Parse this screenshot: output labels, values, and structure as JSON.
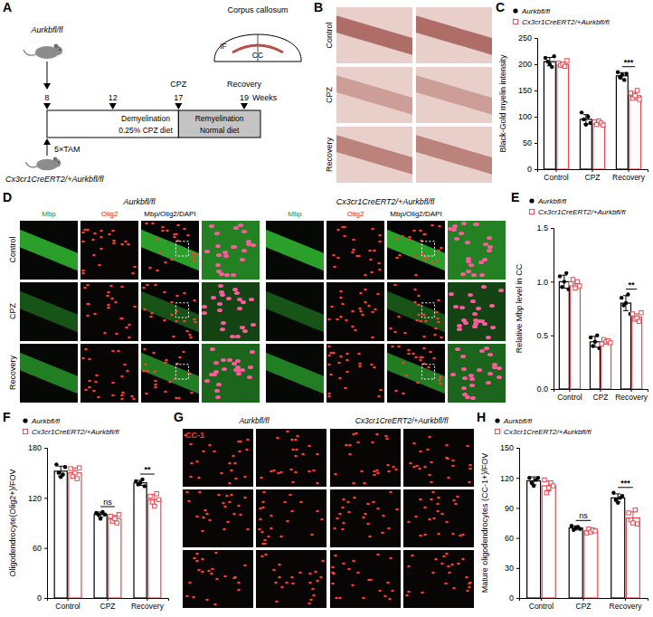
{
  "panel_labels": [
    "A",
    "B",
    "C",
    "D",
    "E",
    "F",
    "G",
    "H"
  ],
  "schematic": {
    "control_mouse": "Aurkbfl/fl",
    "cko_mouse": "Cx3cr1CreERT2/+Aurkbfl/fl",
    "tam": "5×TAM",
    "weeks": [
      8,
      12,
      17,
      19
    ],
    "weeks_label": "Weeks",
    "stage_labels": [
      "CPZ",
      "Recovery"
    ],
    "demyelination": "Demyelination",
    "cpz_diet": "0.25% CPZ diet",
    "remyelination": "Remyelination",
    "normal_diet": "Normal diet",
    "region": "Corpus callosum",
    "method": "IF",
    "region_abbrev": "CC"
  },
  "panel_b": {
    "rows": [
      "Control",
      "CPZ",
      "Recovery"
    ]
  },
  "panel_d": {
    "groups": [
      "Aurkbfl/fl",
      "Cx3cr1CreERT2/+Aurkbfl/fl"
    ],
    "channels": [
      "Mbp",
      "Olig2",
      "Mbp/Olig2/DAPI"
    ],
    "rows": [
      "Control",
      "CPZ",
      "Recovery"
    ]
  },
  "panel_g": {
    "groups": [
      "Aurkbfl/fl",
      "Cx3cr1CreERT2/+Aurkbfl/fl"
    ],
    "stain": "CC-1"
  },
  "chart_data": [
    {
      "type": "bar",
      "ylabel": "Black-Gold myelin intensity",
      "categories": [
        "Control",
        "CPZ",
        "Recovery"
      ],
      "legend": "top",
      "ylim": [
        0,
        250
      ],
      "yticks": [
        0,
        50,
        100,
        150,
        200,
        250
      ],
      "series": [
        {
          "name": "Aurkbfl/fl",
          "color": "#000000",
          "marker": "circle",
          "values": [
            205,
            95,
            178
          ],
          "errors": [
            8,
            9,
            6
          ],
          "points": [
            [
              212,
              205,
              200,
              195,
              215
            ],
            [
              108,
              95,
              85,
              100,
              88
            ],
            [
              185,
              175,
              180,
              170,
              182
            ]
          ]
        },
        {
          "name": "Cx3cr1CreERT2/+Aurkbfl/fl",
          "color": "#e8474f",
          "marker": "open-square",
          "values": [
            200,
            88,
            140
          ],
          "errors": [
            4,
            3,
            7
          ],
          "points": [
            [
              202,
              198,
              200,
              196,
              207
            ],
            [
              90,
              85,
              92,
              88,
              84
            ],
            [
              145,
              135,
              140,
              150,
              133
            ]
          ]
        }
      ],
      "annotations": [
        {
          "category": "Recovery",
          "label": "***"
        }
      ]
    },
    {
      "type": "bar",
      "ylabel": "Relative Mbp level in CC",
      "categories": [
        "Control",
        "CPZ",
        "Recovery"
      ],
      "legend": "top",
      "ylim": [
        0,
        1.5
      ],
      "yticks": [
        {
          "value": 0,
          "label": "0.0"
        },
        {
          "value": 0.5,
          "label": "0.5"
        },
        {
          "value": 1,
          "label": "1.0"
        },
        {
          "value": 1.5,
          "label": "1.5"
        }
      ],
      "series": [
        {
          "name": "Aurkbfl/fl",
          "color": "#000000",
          "marker": "circle",
          "values": [
            1.0,
            0.44,
            0.8
          ],
          "errors": [
            0.06,
            0.05,
            0.07
          ],
          "points": [
            [
              1.05,
              0.95,
              1.0,
              1.08,
              0.93
            ],
            [
              0.48,
              0.4,
              0.44,
              0.5,
              0.38
            ],
            [
              0.85,
              0.78,
              0.8,
              0.88,
              0.7
            ]
          ]
        },
        {
          "name": "Cx3cr1CreERT2/+Aurkbfl/fl",
          "color": "#e8474f",
          "marker": "open-square",
          "values": [
            0.98,
            0.44,
            0.67
          ],
          "errors": [
            0.03,
            0.02,
            0.03
          ],
          "points": [
            [
              0.98,
              1.02,
              0.94,
              1.0,
              0.96
            ],
            [
              0.42,
              0.46,
              0.44,
              0.45,
              0.43
            ],
            [
              0.7,
              0.65,
              0.66,
              0.63,
              0.71
            ]
          ]
        }
      ],
      "annotations": [
        {
          "category": "Recovery",
          "label": "**"
        }
      ]
    },
    {
      "type": "bar",
      "ylabel": "Oligodendrocyte(Olig2+)/FOV",
      "categories": [
        "Control",
        "CPZ",
        "Recovery"
      ],
      "legend": "top",
      "ylim": [
        0,
        180
      ],
      "yticks": [
        0,
        60,
        120,
        180
      ],
      "series": [
        {
          "name": "Aurkbfl/fl",
          "color": "#000000",
          "marker": "circle",
          "values": [
            152,
            100,
            138
          ],
          "errors": [
            6,
            3,
            3
          ],
          "points": [
            [
              160,
              150,
              145,
              148,
              157
            ],
            [
              102,
              100,
              95,
              103,
              100
            ],
            [
              140,
              136,
              138,
              142,
              134
            ]
          ]
        },
        {
          "name": "Cx3cr1CreERT2/+Aurkbfl/fl",
          "color": "#e8474f",
          "marker": "open-square",
          "values": [
            150,
            95,
            118
          ],
          "errors": [
            6,
            4,
            6
          ],
          "points": [
            [
              155,
              146,
              150,
              143,
              156
            ],
            [
              98,
              92,
              95,
              90,
              100
            ],
            [
              122,
              115,
              110,
              125,
              118
            ]
          ]
        }
      ],
      "annotations": [
        {
          "category": "CPZ",
          "label": "ns"
        },
        {
          "category": "Recovery",
          "label": "**"
        }
      ]
    },
    {
      "type": "bar",
      "ylabel": "Mature oligodendrocytes (CC-1+)/FOV",
      "categories": [
        "Control",
        "CPZ",
        "Recovery"
      ],
      "legend": "top",
      "ylim": [
        0,
        150
      ],
      "yticks": [
        0,
        30,
        60,
        90,
        120,
        150
      ],
      "series": [
        {
          "name": "Aurkbfl/fl",
          "color": "#000000",
          "marker": "circle",
          "values": [
            117,
            70,
            100
          ],
          "errors": [
            4,
            2,
            4
          ],
          "points": [
            [
              120,
              115,
              112,
              118,
              120
            ],
            [
              72,
              68,
              70,
              71,
              69
            ],
            [
              105,
              98,
              95,
              100,
              102
            ]
          ]
        },
        {
          "name": "Cx3cr1CreERT2/+Aurkbfl/fl",
          "color": "#e8474f",
          "marker": "open-square",
          "values": [
            112,
            67,
            80
          ],
          "errors": [
            5,
            2,
            6
          ],
          "points": [
            [
              118,
              105,
              110,
              115,
              112
            ],
            [
              65,
              69,
              66,
              68,
              67
            ],
            [
              85,
              78,
              75,
              88,
              74
            ]
          ]
        }
      ],
      "annotations": [
        {
          "category": "CPZ",
          "label": "ns"
        },
        {
          "category": "Recovery",
          "label": "***"
        }
      ]
    }
  ]
}
